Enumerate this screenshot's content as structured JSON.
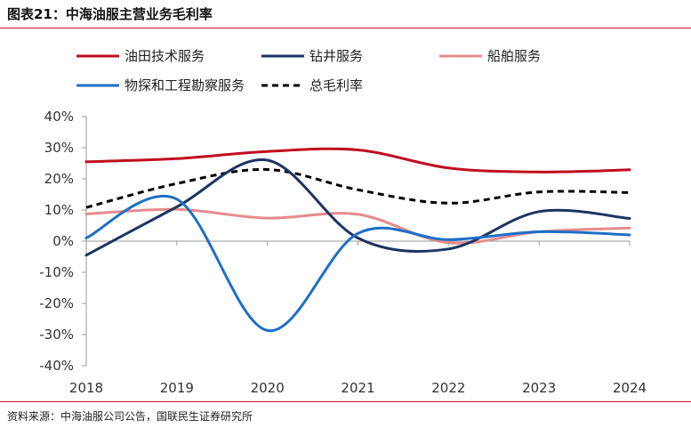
{
  "header": {
    "title": "图表21：中海油服主营业务毛利率"
  },
  "footer": {
    "source": "资料来源：中海油服公司公告，国联民生证券研究所"
  },
  "colors": {
    "rule": "#c9162d"
  },
  "chart_data": {
    "type": "line",
    "title": "",
    "xlabel": "",
    "ylabel": "",
    "x": [
      "2018",
      "2019",
      "2020",
      "2021",
      "2022",
      "2023",
      "2024"
    ],
    "ylim": [
      -40,
      40
    ],
    "yticks": [
      -40,
      -30,
      -20,
      -10,
      0,
      10,
      20,
      30,
      40
    ],
    "ytick_labels": [
      "-40%",
      "-30%",
      "-20%",
      "-10%",
      "0%",
      "10%",
      "20%",
      "30%",
      "40%"
    ],
    "grid": false,
    "legend_position": "top",
    "smooth": true,
    "series": [
      {
        "name": "油田技术服务",
        "color": "#c00d1e",
        "dash": "solid",
        "values": [
          25.5,
          26.5,
          28.8,
          29.3,
          23.5,
          22.2,
          22.9
        ]
      },
      {
        "name": "钻井服务",
        "color": "#1d3461",
        "dash": "solid",
        "values": [
          -4.5,
          11.0,
          26.0,
          1.0,
          -2.5,
          9.5,
          7.3
        ]
      },
      {
        "name": "船舶服务",
        "color": "#e58b8b",
        "dash": "solid",
        "values": [
          8.7,
          10.2,
          7.4,
          8.6,
          -0.5,
          3.0,
          4.2
        ]
      },
      {
        "name": "物探和工程勘察服务",
        "color": "#1e6fc8",
        "dash": "solid",
        "values": [
          1.0,
          13.5,
          -28.7,
          2.5,
          0.5,
          3.0,
          2.0
        ]
      },
      {
        "name": "总毛利率",
        "color": "#000000",
        "dash": "dashed",
        "values": [
          10.8,
          18.5,
          23.0,
          16.5,
          12.2,
          15.8,
          15.6
        ]
      }
    ]
  }
}
